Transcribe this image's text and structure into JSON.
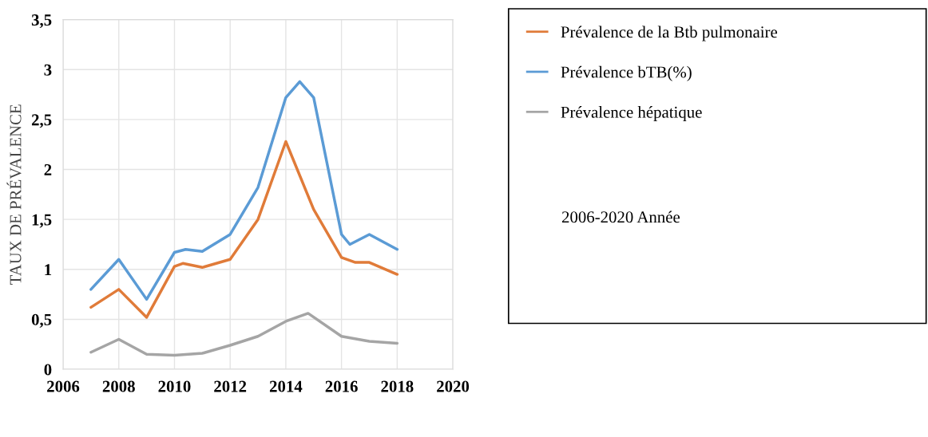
{
  "chart_data": {
    "type": "line",
    "ylabel": "TAUX DE PRÉVALENCE",
    "xlim": [
      2006,
      2020
    ],
    "xticks": [
      2006,
      2008,
      2010,
      2012,
      2014,
      2016,
      2018,
      2020
    ],
    "ylim": [
      0,
      3.5
    ],
    "yticks": [
      0,
      {
        "value": 0.5,
        "label": "0,5"
      },
      1,
      {
        "value": 1.5,
        "label": "1,5"
      },
      2,
      {
        "value": 2.5,
        "label": "2,5"
      },
      3,
      {
        "value": 3.5,
        "label": "3,5"
      }
    ],
    "grid": true,
    "legend": "right",
    "marker": "none",
    "line_style": "solid",
    "annotations": [
      "2006-2020 Année"
    ],
    "series": [
      {
        "name": "Prévalence de la Btb pulmonaire",
        "color": "#e07b39",
        "x": [
          2007,
          2008,
          2009,
          2010,
          2010.3,
          2011,
          2012,
          2013,
          2014,
          2015,
          2016,
          2016.5,
          2017,
          2018
        ],
        "values": [
          0.62,
          0.8,
          0.52,
          1.03,
          1.06,
          1.02,
          1.1,
          1.5,
          2.28,
          1.6,
          1.12,
          1.07,
          1.07,
          0.95
        ]
      },
      {
        "name": "Prévalence bTB(%)",
        "color": "#5b9bd5",
        "x": [
          2007,
          2008,
          2009,
          2010,
          2010.4,
          2011,
          2012,
          2013,
          2014,
          2014.5,
          2015,
          2016,
          2016.3,
          2017,
          2018
        ],
        "values": [
          0.8,
          1.1,
          0.7,
          1.17,
          1.2,
          1.18,
          1.35,
          1.82,
          2.72,
          2.88,
          2.72,
          1.35,
          1.25,
          1.35,
          1.2
        ]
      },
      {
        "name": "Prévalence hépatique",
        "color": "#a5a5a5",
        "x": [
          2007,
          2008,
          2009,
          2010,
          2011,
          2012,
          2013,
          2014,
          2014.8,
          2016,
          2017,
          2018
        ],
        "values": [
          0.17,
          0.3,
          0.15,
          0.14,
          0.16,
          0.24,
          0.33,
          0.48,
          0.56,
          0.33,
          0.28,
          0.26
        ]
      }
    ]
  }
}
